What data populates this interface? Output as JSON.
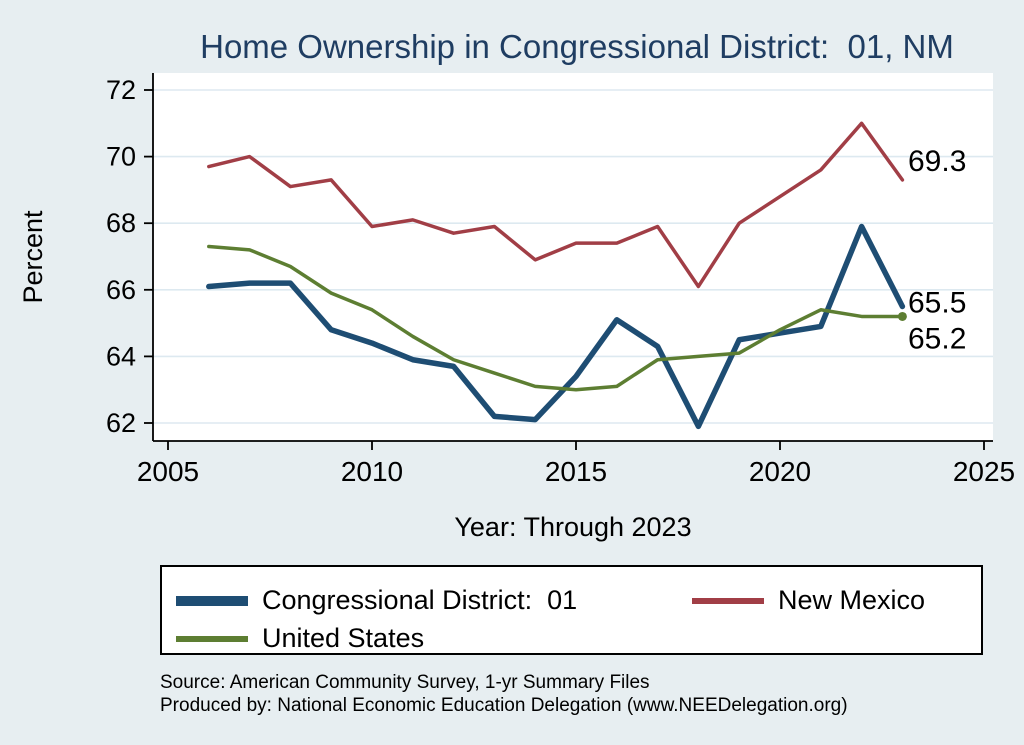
{
  "title": "Home Ownership in Congressional District:  01, NM",
  "chart_data": {
    "type": "line",
    "x": [
      2006,
      2007,
      2008,
      2009,
      2010,
      2011,
      2012,
      2013,
      2014,
      2015,
      2016,
      2017,
      2018,
      2019,
      2020,
      2021,
      2022,
      2023
    ],
    "series": [
      {
        "name": "Congressional District:  01",
        "color": "#1e4d73",
        "stroke_width": 5.5,
        "values": [
          66.1,
          66.2,
          66.2,
          64.8,
          64.4,
          63.9,
          63.7,
          62.2,
          62.1,
          63.4,
          65.1,
          64.3,
          61.9,
          64.5,
          64.7,
          64.9,
          67.9,
          65.5
        ]
      },
      {
        "name": "New Mexico",
        "color": "#a13e46",
        "stroke_width": 3.5,
        "values": [
          69.7,
          70.0,
          69.1,
          69.3,
          67.9,
          68.1,
          67.7,
          67.9,
          66.9,
          67.4,
          67.4,
          67.9,
          66.1,
          68.0,
          68.8,
          69.6,
          71.0,
          69.3
        ]
      },
      {
        "name": "United States",
        "color": "#5d7e32",
        "stroke_width": 3.5,
        "end_marker": true,
        "values": [
          67.3,
          67.2,
          66.7,
          65.9,
          65.4,
          64.6,
          63.9,
          63.5,
          63.1,
          63.0,
          63.1,
          63.9,
          64.0,
          64.1,
          64.8,
          65.4,
          65.2,
          65.2
        ]
      }
    ],
    "title": "Home Ownership in Congressional District:  01, NM",
    "xlabel": "Year: Through 2023",
    "ylabel": "Percent",
    "xticks": [
      2005,
      2010,
      2015,
      2020,
      2025
    ],
    "yticks": [
      62,
      64,
      66,
      68,
      70,
      72
    ],
    "xlim": [
      2004.6,
      2025.2
    ],
    "ylim": [
      61.5,
      72.5
    ],
    "grid": true,
    "legend_position": "bottom",
    "end_labels": [
      {
        "series": 1,
        "text": "69.3"
      },
      {
        "series": 0,
        "text": "65.5"
      },
      {
        "series": 2,
        "text": "65.2"
      }
    ]
  },
  "colors": {
    "background": "#e7eef1",
    "plot_background": "#ffffff",
    "gridline": "#dde9f0",
    "axis": "#000000",
    "title_text": "#1f3d62",
    "cd01_line": "#1e4d73",
    "new_mexico_line": "#a13e46",
    "united_states_line": "#5d7e32"
  },
  "footer": {
    "source": "Source: American Community Survey, 1-yr Summary Files",
    "produced_by": "Produced by: National Economic Education Delegation (www.NEEDelegation.org)"
  }
}
